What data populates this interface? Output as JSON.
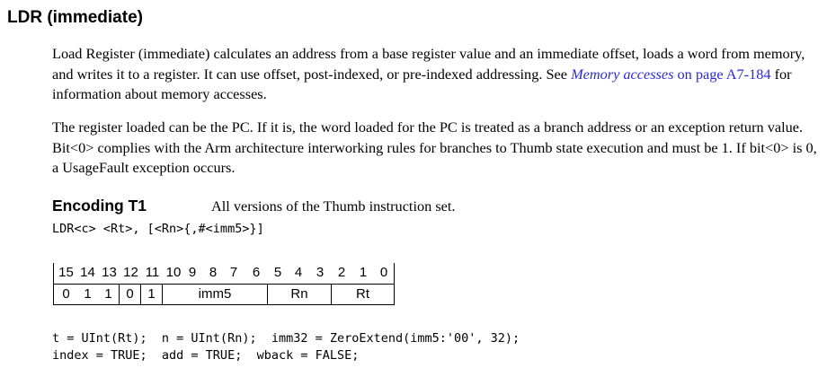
{
  "title": "LDR (immediate)",
  "para1": {
    "before": "Load Register (immediate) calculates an address from a base register value and an immediate offset, loads a word from memory, and writes it to a register. It can use offset, post-indexed, or pre-indexed addressing. See ",
    "link_italic": "Memory accesses",
    "link_plain": " on page A7-184",
    "after": " for information about memory accesses."
  },
  "para2": "The register loaded can be the PC. If it is, the word loaded for the PC is treated as a branch address or an exception return value. Bit<0> complies with the Arm architecture interworking rules for branches to Thumb state execution and must be 1. If bit<0> is 0, a UsageFault exception occurs.",
  "encoding": {
    "heading": "Encoding T1",
    "description": "All versions of the Thumb instruction set.",
    "syntax": "LDR<c> <Rt>, [<Rn>{,#<imm5>}]"
  },
  "bit_numbers": [
    "15",
    "14",
    "13",
    "12",
    "11",
    "10",
    "9",
    "8",
    "7",
    "6",
    "5",
    "4",
    "3",
    "2",
    "1",
    "0"
  ],
  "fields": [
    "0",
    "1",
    "1",
    "0",
    "1",
    "imm5",
    "Rn",
    "Rt"
  ],
  "code": [
    "t = UInt(Rt);  n = UInt(Rn);  imm32 = ZeroExtend(imm5:'00', 32);",
    "index = TRUE;  add = TRUE;  wback = FALSE;"
  ]
}
